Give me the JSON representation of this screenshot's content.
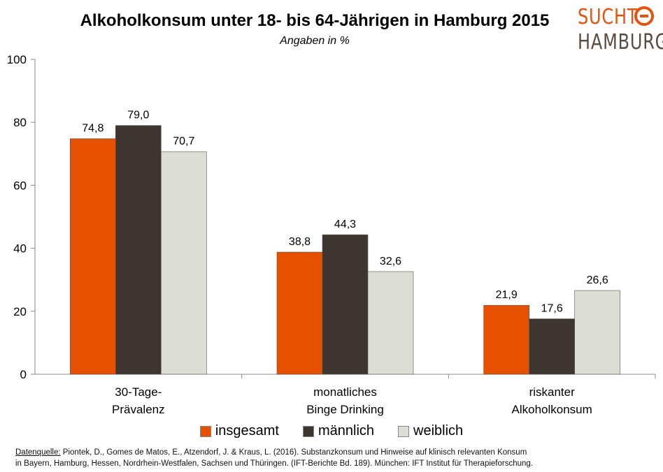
{
  "logo": {
    "top_text": "SUCHT",
    "bottom_text": "HAMBURG",
    "colors": {
      "top": "#e65310",
      "bottom": "#5b4b41"
    }
  },
  "chart_data": {
    "type": "bar",
    "title": "Alkoholkonsum unter 18- bis 64-Jährigen in Hamburg 2015",
    "subtitle": "Angaben in %",
    "xlabel": "",
    "ylabel": "",
    "ylim": [
      0,
      100
    ],
    "yticks": [
      "0",
      "20",
      "40",
      "60",
      "80",
      "100"
    ],
    "grid": false,
    "legend_position": "bottom",
    "categories": [
      [
        "30-Tage-",
        "Prävalenz"
      ],
      [
        "monatliches",
        "Binge Drinking"
      ],
      [
        "riskanter",
        "Alkoholkonsum"
      ]
    ],
    "series": [
      {
        "name": "insgesamt",
        "color": "#e65100",
        "values": [
          74.8,
          38.8,
          21.9
        ],
        "labels": [
          "74,8",
          "38,8",
          "21,9"
        ]
      },
      {
        "name": "männlich",
        "color": "#3f3530",
        "values": [
          79.0,
          44.3,
          17.6
        ],
        "labels": [
          "79,0",
          "44,3",
          "17,6"
        ]
      },
      {
        "name": "weiblich",
        "color": "#dcddd4",
        "values": [
          70.7,
          32.6,
          26.6
        ],
        "labels": [
          "70,7",
          "32,6",
          "26,6"
        ]
      }
    ]
  },
  "source": {
    "label": "Datenquelle:",
    "line1": "Piontek, D., Gomes de Matos, E., Atzendorf, J. & Kraus, L. (2016). Substanzkonsum und Hinweise auf klinisch relevanten Konsum",
    "line2": "in Bayern, Hamburg, Hessen, Nordrhein-Westfalen, Sachsen und Thüringen. (IFT-Berichte Bd. 189). München: IFT Institut für Therapieforschung."
  }
}
